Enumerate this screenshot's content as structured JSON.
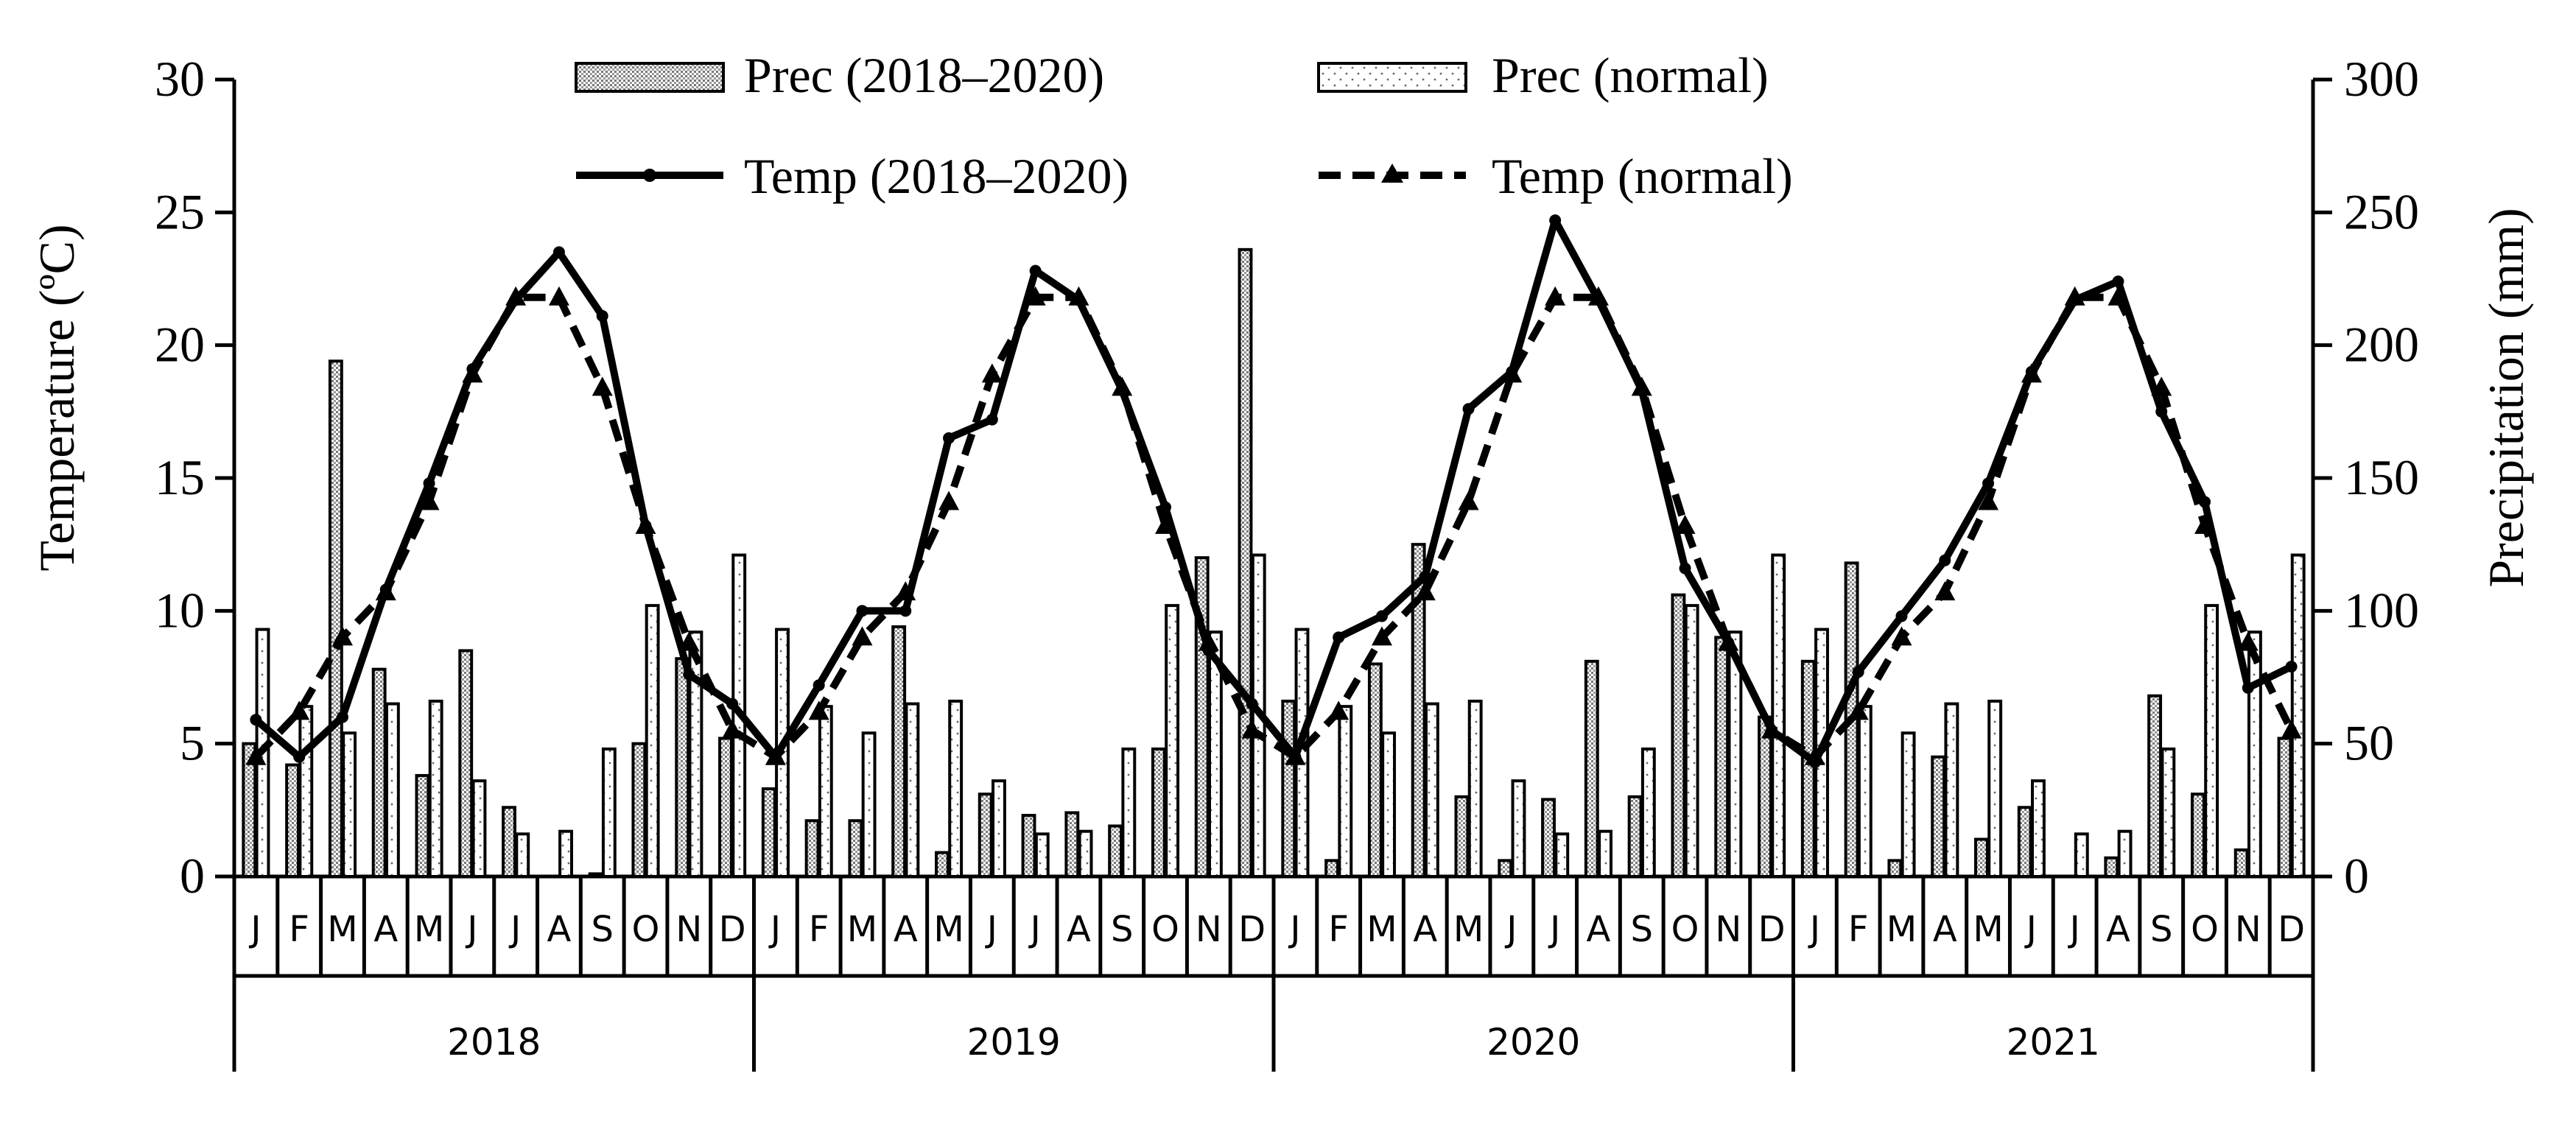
{
  "chart_data": {
    "type": "bar+line",
    "months": [
      "J",
      "F",
      "M",
      "A",
      "M",
      "J",
      "J",
      "A",
      "S",
      "O",
      "N",
      "D"
    ],
    "years": [
      "2018",
      "2019",
      "2020",
      "2021"
    ],
    "y_left": {
      "label": "Temperature (ºC)",
      "range": [
        0,
        30
      ],
      "ticks": [
        "0",
        "5",
        "10",
        "15",
        "20",
        "25",
        "30"
      ]
    },
    "y_right": {
      "label": "Precipitation (mm)",
      "range": [
        0,
        300
      ],
      "ticks": [
        "0",
        "50",
        "100",
        "150",
        "200",
        "250",
        "300"
      ]
    },
    "legend": {
      "prec_obs": "Prec (2018–2020)",
      "prec_norm": "Prec (normal)",
      "temp_obs": "Temp (2018–2020)",
      "temp_norm": "Temp (normal)"
    },
    "series": [
      {
        "name": "Prec (2018–2020)",
        "axis": "right",
        "kind": "bar",
        "values": [
          50,
          42,
          194,
          78,
          38,
          85,
          26,
          0,
          1,
          50,
          82,
          52,
          33,
          21,
          21,
          94,
          9,
          31,
          23,
          24,
          19,
          48,
          120,
          236,
          66,
          6,
          80,
          125,
          30,
          6,
          29,
          81,
          30,
          106,
          90,
          60,
          81,
          118,
          6,
          45,
          14,
          26,
          0,
          7,
          68,
          31,
          10,
          52
        ]
      },
      {
        "name": "Prec (normal)",
        "axis": "right",
        "kind": "bar",
        "values": [
          93,
          64,
          54,
          65,
          66,
          36,
          16,
          17,
          48,
          102,
          92,
          121,
          93,
          64,
          54,
          65,
          66,
          36,
          16,
          17,
          48,
          102,
          92,
          121,
          93,
          64,
          54,
          65,
          66,
          36,
          16,
          17,
          48,
          102,
          92,
          121,
          93,
          64,
          54,
          65,
          66,
          36,
          16,
          17,
          48,
          102,
          92,
          121
        ]
      },
      {
        "name": "Temp (2018–2020)",
        "axis": "left",
        "kind": "line",
        "values": [
          5.9,
          4.5,
          6.0,
          10.8,
          14.8,
          19.1,
          21.7,
          23.5,
          21.1,
          13.2,
          7.6,
          6.5,
          4.5,
          7.2,
          10.0,
          10.0,
          16.5,
          17.2,
          22.8,
          21.7,
          18.3,
          13.9,
          8.5,
          6.5,
          4.5,
          9.0,
          9.8,
          11.3,
          17.6,
          19.0,
          24.7,
          21.7,
          18.3,
          11.6,
          8.8,
          5.5,
          4.3,
          7.7,
          9.8,
          11.9,
          14.8,
          19.0,
          21.7,
          22.4,
          17.5,
          14.1,
          7.1,
          7.9
        ]
      },
      {
        "name": "Temp (normal)",
        "axis": "left",
        "kind": "line",
        "values": [
          4.5,
          6.2,
          9.0,
          10.7,
          14.1,
          18.9,
          21.8,
          21.8,
          18.4,
          13.2,
          8.8,
          5.5,
          4.5,
          6.2,
          9.0,
          10.7,
          14.1,
          18.9,
          21.8,
          21.8,
          18.4,
          13.2,
          8.8,
          5.5,
          4.5,
          6.2,
          9.0,
          10.7,
          14.1,
          18.9,
          21.8,
          21.8,
          18.4,
          13.2,
          8.8,
          5.5,
          4.5,
          6.2,
          9.0,
          10.7,
          14.1,
          18.9,
          21.8,
          21.8,
          18.4,
          13.2,
          8.8,
          5.5
        ]
      }
    ]
  }
}
